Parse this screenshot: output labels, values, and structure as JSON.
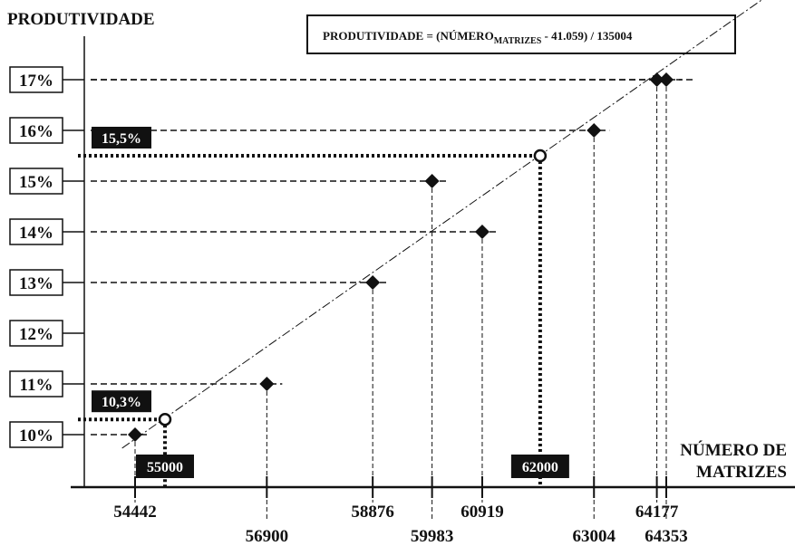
{
  "chart_data": {
    "type": "scatter",
    "ylabel": "PRODUTIVIDADE",
    "xlabel_lines": [
      "NÚMERO DE",
      "MATRIZES"
    ],
    "formula": {
      "prefix": "PRODUTIVIDADE = (NÚMERO",
      "subscript": "MATRIZES",
      "suffix": " - 41.059) / 135004"
    },
    "y_ticks": [
      "10%",
      "11%",
      "12%",
      "13%",
      "14%",
      "15%",
      "16%",
      "17%"
    ],
    "ylim": [
      0.095,
      0.175
    ],
    "points": [
      {
        "x": 54442,
        "y": 0.1,
        "label": "54442"
      },
      {
        "x": 56900,
        "y": 0.11,
        "label": "56900"
      },
      {
        "x": 58876,
        "y": 0.13,
        "label": "58876"
      },
      {
        "x": 59983,
        "y": 0.15,
        "label": "59983"
      },
      {
        "x": 60919,
        "y": 0.14,
        "label": "60919"
      },
      {
        "x": 63004,
        "y": 0.16,
        "label": "63004"
      },
      {
        "x": 64177,
        "y": 0.17,
        "label": "64177"
      },
      {
        "x": 64353,
        "y": 0.17,
        "label": "64353"
      }
    ],
    "highlights": [
      {
        "x": 55000,
        "x_label": "55000",
        "y": 0.103,
        "y_label": "10,3%"
      },
      {
        "x": 62000,
        "x_label": "62000",
        "y": 0.155,
        "y_label": "15,5%"
      }
    ],
    "trend_line": {
      "slope_divisor": 135004,
      "intercept": 41059,
      "x_range": [
        54200,
        66400
      ]
    },
    "colors": {
      "ink": "#111111",
      "callout_bg": "#111111",
      "callout_text": "#ffffff"
    }
  }
}
